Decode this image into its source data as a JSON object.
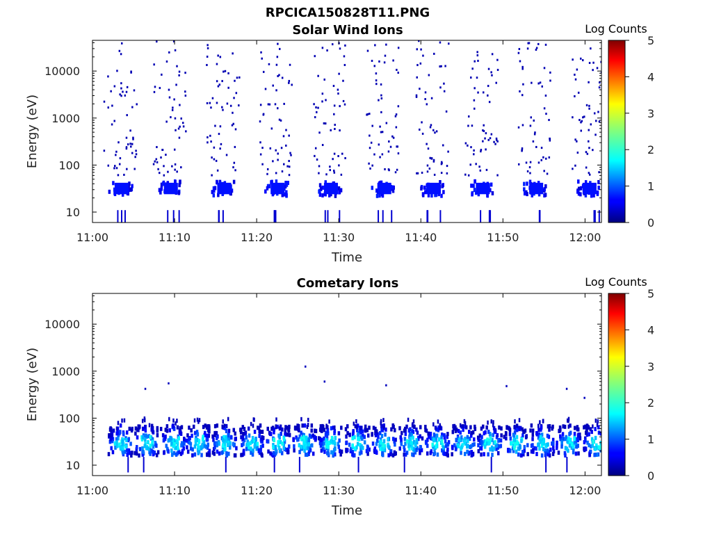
{
  "figure_title": "RPCICA150828T11.PNG",
  "chart_data": [
    {
      "type": "heatmap",
      "title": "Solar Wind Ions",
      "xlabel": "Time",
      "ylabel": "Energy (eV)",
      "x_ticks": [
        "11:00",
        "11:10",
        "11:20",
        "11:30",
        "11:40",
        "11:50",
        "12:00"
      ],
      "xlim": [
        "11:00",
        "12:02"
      ],
      "y_scale": "log",
      "y_ticks": [
        "10",
        "100",
        "1000",
        "10000"
      ],
      "ylim": [
        6,
        45000
      ],
      "colorbar": {
        "label": "Log Counts",
        "ticks": [
          "0",
          "1",
          "2",
          "3",
          "4",
          "5"
        ],
        "range": [
          0,
          5
        ],
        "colormap": "jet"
      },
      "sweep_centers_min": [
        3.5,
        9.5,
        16.0,
        22.5,
        29.0,
        35.5,
        41.5,
        47.5,
        54.0,
        60.5
      ],
      "sweeps": [
        {
          "label": "sweep-1",
          "time_center": "11:03:30",
          "band_eV": [
            22,
            45
          ],
          "band_log_counts": 0.6,
          "scatter_eV": [
            60,
            50000
          ]
        },
        {
          "label": "sweep-2",
          "time_center": "11:09:30",
          "band_eV": [
            22,
            45
          ],
          "band_log_counts": 0.6,
          "scatter_eV": [
            60,
            50000
          ]
        },
        {
          "label": "sweep-3",
          "time_center": "11:16:00",
          "band_eV": [
            22,
            45
          ],
          "band_log_counts": 0.6,
          "scatter_eV": [
            60,
            50000
          ]
        },
        {
          "label": "sweep-4",
          "time_center": "11:22:30",
          "band_eV": [
            22,
            45
          ],
          "band_log_counts": 0.6,
          "scatter_eV": [
            60,
            50000
          ]
        },
        {
          "label": "sweep-5",
          "time_center": "11:29:00",
          "band_eV": [
            22,
            45
          ],
          "band_log_counts": 0.6,
          "scatter_eV": [
            60,
            50000
          ]
        },
        {
          "label": "sweep-6",
          "time_center": "11:35:30",
          "band_eV": [
            22,
            45
          ],
          "band_log_counts": 0.6,
          "scatter_eV": [
            60,
            50000
          ]
        },
        {
          "label": "sweep-7",
          "time_center": "11:41:30",
          "band_eV": [
            22,
            45
          ],
          "band_log_counts": 0.6,
          "scatter_eV": [
            60,
            50000
          ]
        },
        {
          "label": "sweep-8",
          "time_center": "11:47:30",
          "band_eV": [
            22,
            45
          ],
          "band_log_counts": 0.6,
          "scatter_eV": [
            60,
            50000
          ]
        },
        {
          "label": "sweep-9",
          "time_center": "11:54:00",
          "band_eV": [
            22,
            45
          ],
          "band_log_counts": 0.6,
          "scatter_eV": [
            60,
            50000
          ]
        },
        {
          "label": "sweep-10",
          "time_center": "12:00:30",
          "band_eV": [
            22,
            45
          ],
          "band_log_counts": 0.6,
          "scatter_eV": [
            60,
            50000
          ]
        }
      ]
    },
    {
      "type": "heatmap",
      "title": "Cometary Ions",
      "xlabel": "Time",
      "ylabel": "Energy (eV)",
      "x_ticks": [
        "11:00",
        "11:10",
        "11:20",
        "11:30",
        "11:40",
        "11:50",
        "12:00"
      ],
      "xlim": [
        "11:00",
        "12:02"
      ],
      "y_scale": "log",
      "y_ticks": [
        "10",
        "100",
        "1000",
        "10000"
      ],
      "ylim": [
        6,
        45000
      ],
      "colorbar": {
        "label": "Log Counts",
        "ticks": [
          "0",
          "1",
          "2",
          "3",
          "4",
          "5"
        ],
        "range": [
          0,
          5
        ],
        "colormap": "jet"
      },
      "sweep_centers_min": [
        3.3,
        6.5,
        9.7,
        12.8,
        16.0,
        19.3,
        22.5,
        25.7,
        28.9,
        32.2,
        35.4,
        38.7,
        41.9,
        45.1,
        48.3,
        51.5,
        54.7,
        57.9,
        61.2
      ],
      "band_eV": [
        16,
        70
      ],
      "band_peak_log_counts": 2.0,
      "band_peak_eV": 28,
      "sparse_points": [
        {
          "time": "11:06:20",
          "eV": 420
        },
        {
          "time": "11:09:10",
          "eV": 550
        },
        {
          "time": "11:25:50",
          "eV": 1250
        },
        {
          "time": "11:28:10",
          "eV": 600
        },
        {
          "time": "11:35:40",
          "eV": 500
        },
        {
          "time": "11:50:20",
          "eV": 480
        },
        {
          "time": "11:57:40",
          "eV": 420
        },
        {
          "time": "11:59:50",
          "eV": 270
        }
      ]
    }
  ]
}
